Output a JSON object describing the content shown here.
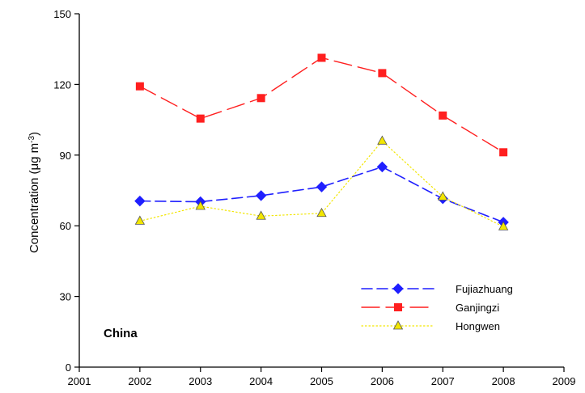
{
  "chart_data": {
    "type": "line",
    "title": "",
    "xlabel": "",
    "ylabel": "Concentration (μg m",
    "ylabel_sup": "-3",
    "ylabel_close": ")",
    "xlim": [
      2001,
      2009
    ],
    "ylim": [
      0,
      150
    ],
    "xticks": [
      "2001",
      "2002",
      "2003",
      "2004",
      "2005",
      "2006",
      "2007",
      "2008",
      "2009"
    ],
    "yticks": [
      "0",
      "30",
      "60",
      "90",
      "120",
      "150"
    ],
    "grid": false,
    "legend_position": "bottom-right",
    "annotation": "China",
    "x": [
      2002,
      2003,
      2004,
      2005,
      2006,
      2007,
      2008
    ],
    "series": [
      {
        "name": "Fujiazhuang",
        "values": [
          70.5,
          70.2,
          72.8,
          76.5,
          85.0,
          71.5,
          61.5
        ],
        "color": "#1f1fff",
        "marker": "diamond",
        "dash": "dash"
      },
      {
        "name": "Ganjingzi",
        "values": [
          119.2,
          105.5,
          114.2,
          131.3,
          124.8,
          106.8,
          91.2
        ],
        "color": "#ff1f1f",
        "marker": "square",
        "dash": "longdash"
      },
      {
        "name": "Hongwen",
        "values": [
          62.0,
          68.3,
          64.1,
          65.3,
          96.0,
          72.3,
          59.6
        ],
        "color": "#f2e600",
        "marker": "triangle",
        "dash": "dot"
      }
    ]
  }
}
